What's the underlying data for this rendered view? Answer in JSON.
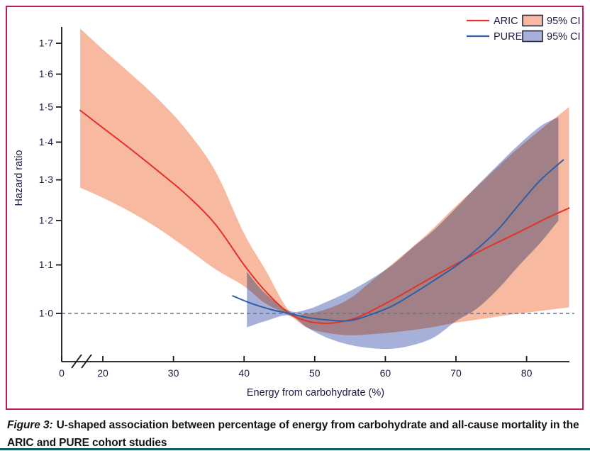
{
  "figure": {
    "caption_prefix": "Figure 3:",
    "caption_text": "U-shaped association between percentage of energy from carbohydrate and all-cause mortality in the ARIC and PURE cohort studies"
  },
  "chart_data": {
    "type": "line",
    "title": "",
    "xlabel": "Energy from carbohydrate (%)",
    "ylabel": "Hazard ratio",
    "x_axis": {
      "range": [
        0,
        86
      ],
      "axis_break_between": [
        0,
        17
      ],
      "ticks": [
        {
          "value": 0,
          "label": "0"
        },
        {
          "value": 20,
          "label": "20"
        },
        {
          "value": 30,
          "label": "30"
        },
        {
          "value": 40,
          "label": "40"
        },
        {
          "value": 50,
          "label": "50"
        },
        {
          "value": 60,
          "label": "60"
        },
        {
          "value": 70,
          "label": "70"
        },
        {
          "value": 80,
          "label": "80"
        }
      ]
    },
    "y_axis": {
      "scale": "log",
      "range": [
        0.91,
        1.76
      ],
      "ticks": [
        {
          "value": 1.0,
          "label": "1·0"
        },
        {
          "value": 1.1,
          "label": "1·1"
        },
        {
          "value": 1.2,
          "label": "1·2"
        },
        {
          "value": 1.3,
          "label": "1·3"
        },
        {
          "value": 1.4,
          "label": "1·4"
        },
        {
          "value": 1.5,
          "label": "1·5"
        },
        {
          "value": 1.6,
          "label": "1·6"
        },
        {
          "value": 1.7,
          "label": "1·7"
        }
      ]
    },
    "reference_line": {
      "y": 1.0,
      "style": "dashed",
      "color": "#5f7787"
    },
    "legend_position": "top-right",
    "grid": false,
    "series": [
      {
        "name": "ARIC",
        "color": "#e2322a",
        "x": [
          16.8,
          20,
          24,
          28,
          32,
          36,
          40,
          43,
          46.4,
          49,
          51,
          53,
          56,
          59,
          62,
          65,
          68,
          71,
          74,
          77,
          80,
          83,
          86
        ],
        "hr": [
          1.49,
          1.44,
          1.38,
          1.32,
          1.26,
          1.19,
          1.1,
          1.045,
          1.0,
          0.985,
          0.981,
          0.982,
          0.992,
          1.012,
          1.035,
          1.06,
          1.085,
          1.11,
          1.135,
          1.158,
          1.182,
          1.207,
          1.23
        ],
        "ci": {
          "label": "95% CI",
          "color": "#f7b99f",
          "x": [
            16.8,
            20,
            24,
            28,
            32,
            36,
            40,
            43,
            46.4,
            49,
            52,
            55,
            58,
            62,
            66,
            70,
            74,
            78,
            82,
            86
          ],
          "upper": [
            1.75,
            1.68,
            1.6,
            1.52,
            1.43,
            1.32,
            1.17,
            1.09,
            1.005,
            1.0,
            1.01,
            1.03,
            1.065,
            1.115,
            1.17,
            1.235,
            1.3,
            1.37,
            1.435,
            1.5
          ],
          "lower": [
            1.28,
            1.255,
            1.22,
            1.18,
            1.135,
            1.09,
            1.055,
            1.02,
            0.996,
            0.972,
            0.962,
            0.958,
            0.96,
            0.965,
            0.972,
            0.982,
            0.99,
            0.998,
            1.005,
            1.012
          ]
        }
      },
      {
        "name": "PURE",
        "color": "#2e5ea6",
        "x": [
          38.4,
          41,
          44,
          46.4,
          49,
          52,
          55,
          58,
          61,
          64,
          67,
          70,
          73,
          76,
          79,
          82,
          85.2
        ],
        "hr": [
          1.035,
          1.02,
          1.007,
          1.0,
          0.992,
          0.987,
          0.986,
          0.998,
          1.015,
          1.04,
          1.068,
          1.098,
          1.135,
          1.18,
          1.24,
          1.3,
          1.352
        ],
        "ci": {
          "label": "95% CI",
          "color": "#a6b0d8",
          "x": [
            40.4,
            43,
            46.4,
            49,
            52,
            55,
            58,
            61,
            64,
            67,
            70,
            73,
            76,
            79,
            82,
            84.5
          ],
          "upper": [
            1.085,
            1.04,
            1.005,
            1.008,
            1.025,
            1.045,
            1.07,
            1.1,
            1.14,
            1.18,
            1.23,
            1.285,
            1.34,
            1.395,
            1.445,
            1.47
          ],
          "lower": [
            0.973,
            0.985,
            0.996,
            0.972,
            0.952,
            0.94,
            0.934,
            0.933,
            0.94,
            0.955,
            0.985,
            1.01,
            1.05,
            1.1,
            1.15,
            1.2
          ]
        }
      }
    ]
  }
}
